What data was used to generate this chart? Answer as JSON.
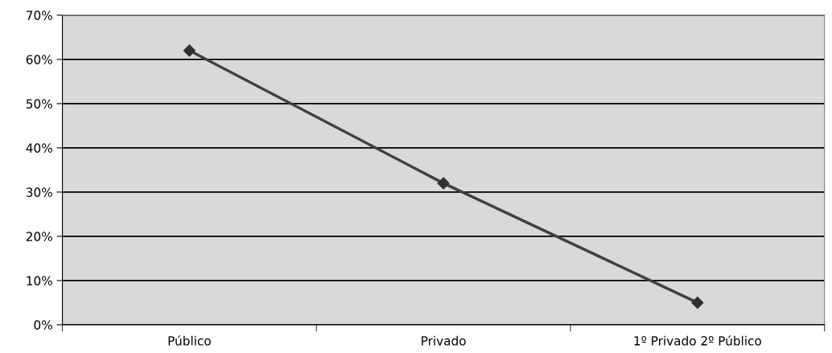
{
  "chart_data": {
    "type": "line",
    "categories": [
      "Público",
      "Privado",
      "1º Privado 2º Público"
    ],
    "series": [
      {
        "color": "#404040",
        "values": [
          0.62,
          0.32,
          0.05
        ]
      }
    ],
    "ylim": [
      0,
      0.7
    ],
    "yticks": [
      {
        "value": 0,
        "label": "0%"
      },
      {
        "value": 0.1,
        "label": "10%"
      },
      {
        "value": 0.2,
        "label": "20%"
      },
      {
        "value": 0.3,
        "label": "30%"
      },
      {
        "value": 0.4,
        "label": "40%"
      },
      {
        "value": 0.5,
        "label": "50%"
      },
      {
        "value": 0.6,
        "label": "60%"
      },
      {
        "value": 0.7,
        "label": "70%"
      }
    ],
    "grid": "y",
    "marker": "diamond",
    "line_style": "solid",
    "legend": false
  }
}
